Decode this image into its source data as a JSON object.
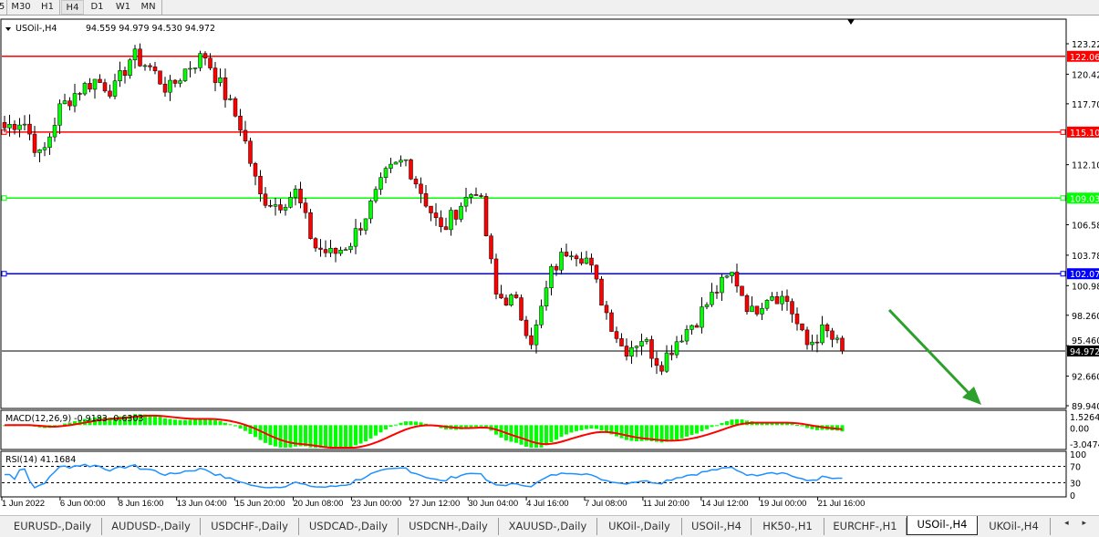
{
  "toolbar": {
    "timeframes": [
      "5",
      "M30",
      "H1",
      "H4",
      "D1",
      "W1",
      "MN"
    ],
    "active": "H4"
  },
  "chart_header": {
    "symbol": "USOil-,H4",
    "ohlc": "94.559 94.979 94.530 94.972"
  },
  "colors": {
    "bull": "#00ff00",
    "bear": "#ff0000",
    "resistance": "#ff0000",
    "support_green": "#00ff00",
    "support_blue": "#0000ff",
    "macd_signal": "#ff0000",
    "macd_hist": "#00ff00",
    "rsi": "#1e90ff",
    "arrow": "#2ca02c"
  },
  "chart_data": [
    {
      "type": "candlestick",
      "title": "USOil-,H4",
      "ylim": [
        89.94,
        123.22
      ],
      "grid": false,
      "price_ticks": [
        "123.220",
        "120.420",
        "117.700",
        "112.100",
        "106.580",
        "103.780",
        "100.980",
        "98.260",
        "95.460",
        "92.660",
        "89.940"
      ],
      "time_labels": [
        "1 Jun 2022",
        "6 Jun 00:00",
        "8 Jun 16:00",
        "13 Jun 04:00",
        "15 Jun 20:00",
        "20 Jun 08:00",
        "23 Jun 00:00",
        "27 Jun 12:00",
        "30 Jun 04:00",
        "4 Jul 16:00",
        "7 Jul 08:00",
        "11 Jul 20:00",
        "14 Jul 12:00",
        "19 Jul 00:00",
        "21 Jul 16:00"
      ],
      "approx_closes": [
        115.5,
        116.3,
        112.6,
        117.2,
        118.9,
        119.9,
        118.9,
        122.2,
        121.0,
        118.9,
        121.0,
        122.2,
        118.9,
        115.5,
        109.2,
        108.4,
        109.6,
        104.6,
        103.8,
        105.0,
        108.0,
        111.3,
        112.6,
        109.2,
        105.9,
        108.4,
        110.1,
        100.0,
        99.6,
        95.8,
        102.1,
        104.6,
        103.4,
        98.7,
        95.0,
        96.2,
        93.7,
        96.2,
        97.9,
        100.4,
        102.1,
        98.4,
        100.4,
        99.6,
        95.4,
        96.9,
        94.972
      ],
      "horizontal_levels": [
        {
          "value": 122.066,
          "label": "122.066",
          "color": "#ff0000"
        },
        {
          "value": 115.1,
          "label": "115.100",
          "color": "#ff0000"
        },
        {
          "value": 109.03,
          "label": "109.030",
          "color": "#00ff00"
        },
        {
          "value": 102.076,
          "label": "102.076",
          "color": "#0000ff"
        }
      ],
      "current_price": {
        "value": 94.972,
        "label": "94.972"
      },
      "annotation": "down-arrow (green)"
    },
    {
      "type": "macd",
      "label": "MACD(12,26,9) -0.9183 -0.6303",
      "ticks": [
        "1.5264",
        "0.00",
        "-3.0474"
      ],
      "ylim": [
        -3.0474,
        1.5264
      ]
    },
    {
      "type": "rsi",
      "label": "RSI(14) 41.1684",
      "ticks": [
        "100",
        "70",
        "30",
        "0"
      ],
      "levels": [
        70,
        30
      ],
      "ylim": [
        0,
        100
      ]
    }
  ],
  "tabs": [
    "EURUSD-,Daily",
    "AUDUSD-,Daily",
    "USDCHF-,Daily",
    "USDCAD-,Daily",
    "USDCNH-,Daily",
    "XAUUSD-,Daily",
    "UKOil-,Daily",
    "USOil-,H4",
    "HK50-,H1",
    "EURCHF-,H1",
    "USOil-,H4",
    "UKOil-,H4"
  ],
  "active_tab": 10,
  "tab_scroll": "◂ ▸"
}
